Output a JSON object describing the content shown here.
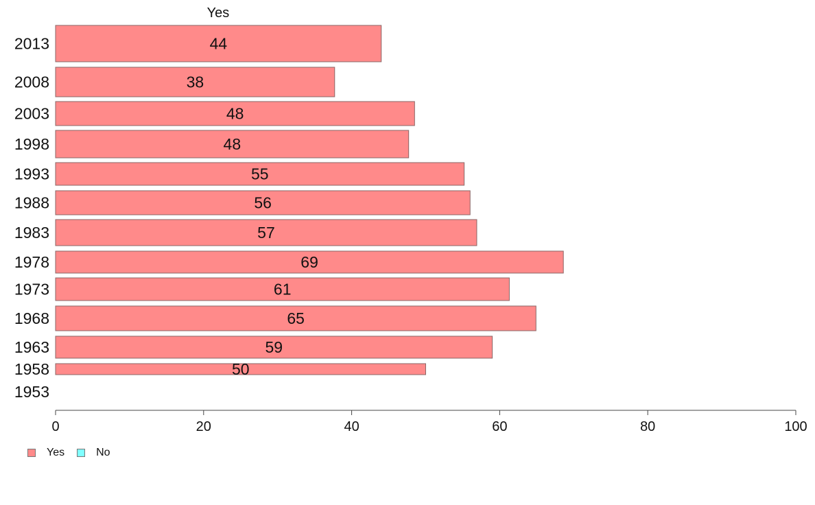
{
  "chart_data": {
    "type": "bar",
    "orientation": "horizontal",
    "title": "Yes",
    "categories": [
      "2013",
      "2008",
      "2003",
      "1998",
      "1993",
      "1988",
      "1983",
      "1978",
      "1973",
      "1968",
      "1963",
      "1958",
      "1953"
    ],
    "series": [
      {
        "name": "Yes",
        "color": "#ff8a8a",
        "values": [
          44,
          37.7,
          48.5,
          47.7,
          55.2,
          56,
          56.9,
          68.6,
          61.3,
          64.9,
          59,
          50,
          null
        ],
        "labels": [
          "44",
          "38",
          "48",
          "48",
          "55",
          "56",
          "57",
          "69",
          "61",
          "65",
          "59",
          "50",
          ""
        ]
      },
      {
        "name": "No",
        "color": "#80ffff",
        "values": [
          null,
          null,
          null,
          null,
          null,
          null,
          null,
          null,
          null,
          null,
          null,
          null,
          null
        ]
      }
    ],
    "xlim": [
      0,
      100
    ],
    "xticks": [
      "0",
      "20",
      "40",
      "60",
      "80",
      "100"
    ],
    "grid": false,
    "legend_position": "bottom-left"
  },
  "legend": {
    "items": [
      {
        "label": "Yes",
        "color": "#ff8a8a"
      },
      {
        "label": "No",
        "color": "#80ffff"
      }
    ]
  }
}
